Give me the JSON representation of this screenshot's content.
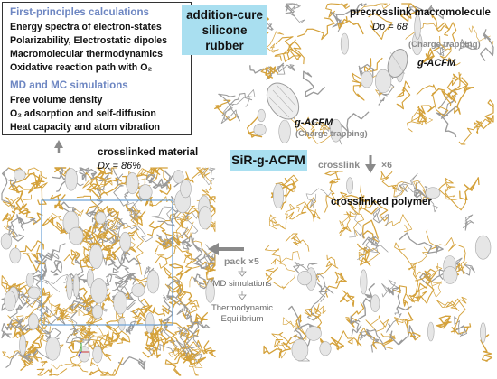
{
  "info_box": {
    "fp_header": "First-principles calculations",
    "fp_items": [
      "Energy spectra of electron-states",
      "Polarizability, Electrostatic dipoles",
      "Macromolecular thermodynamics",
      "Oxidative reaction path with O₂"
    ],
    "md_header": "MD and MC simulations",
    "md_items": [
      "Free volume density",
      "O₂ adsorption and self-diffusion",
      "Heat capacity and atom vibration"
    ]
  },
  "label_silicone": "addition-cure silicone rubber",
  "label_sir": "SiR-g-ACFM",
  "precrosslink": {
    "title": "precrosslink macromolecule",
    "dp_text": "Dp = 68",
    "charge_trapping_1": "(Charge trapping)",
    "acfm_1": "g-ACFM",
    "acfm_2": "g-ACFM",
    "charge_trapping_2": "(Charge trapping)"
  },
  "crosslinked_material": {
    "title": "crosslinked material",
    "dx_text": "Dx = 86%"
  },
  "crosslink_step": {
    "label": "crosslink",
    "multiplier": "×6"
  },
  "crosslinked_polymer": {
    "title": "crosslinked polymer"
  },
  "pack_step": {
    "label": "pack ×5",
    "md_label": "MD simulations",
    "thermo_label_1": "Thermodynamic",
    "thermo_label_2": "Equilibrium"
  },
  "colors": {
    "header_blue": "#6d86c2",
    "label_box": "#a9dff0",
    "arrow_gray": "#8a8a8a",
    "chain_gold": "#d4a13a",
    "chain_gray": "#9a9a9a",
    "cell_blue": "#6aa0d6"
  }
}
